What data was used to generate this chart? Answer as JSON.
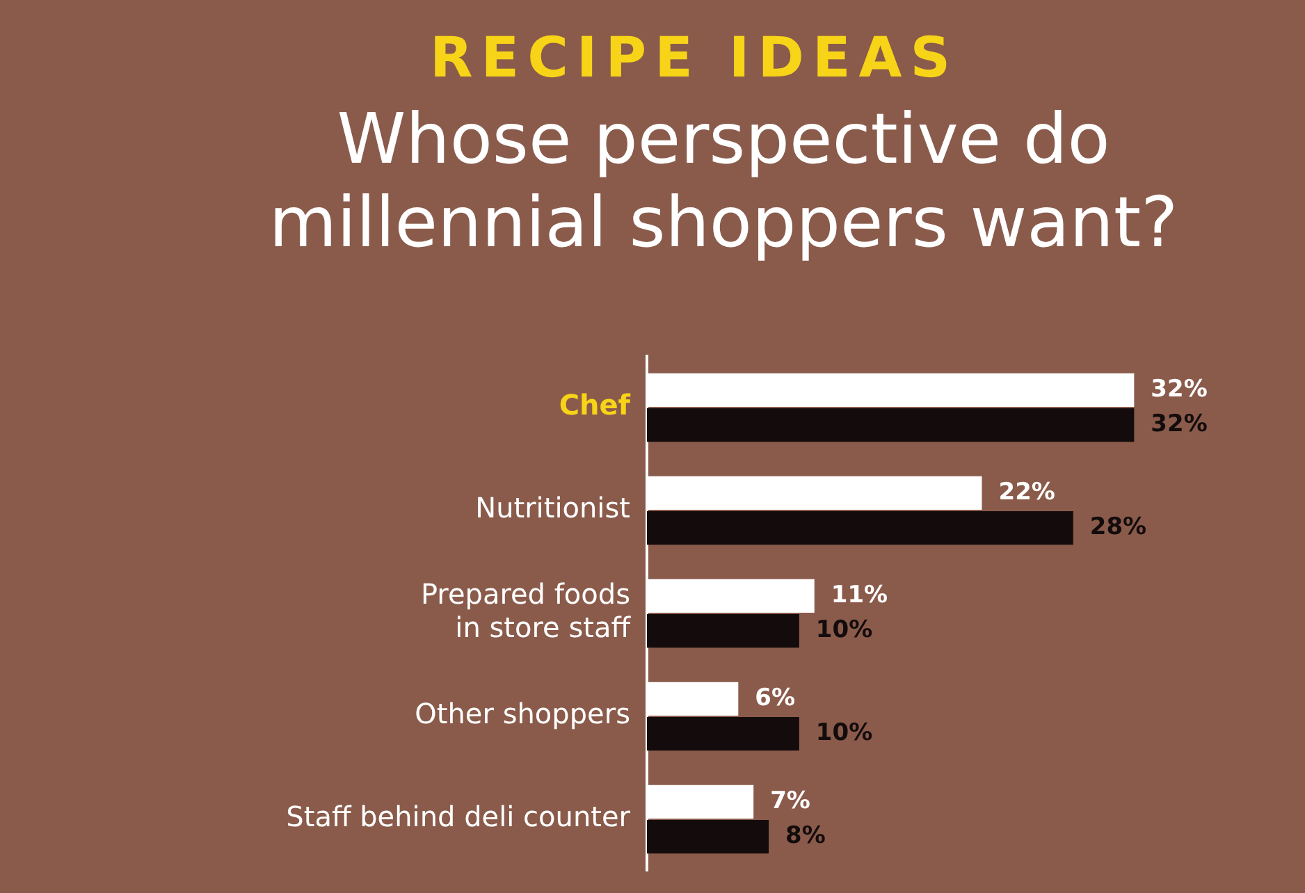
{
  "chart_data": {
    "type": "bar",
    "orientation": "horizontal",
    "title": "RECIPE IDEAS",
    "subtitle": "Whose perspective do millennial shoppers want?",
    "categories": [
      "Chef",
      "Nutritionist",
      "Prepared foods\nin store staff",
      "Other shoppers",
      "Staff behind deli counter"
    ],
    "series": [
      {
        "color": "#ffffff",
        "values": [
          32,
          22,
          11,
          6,
          7
        ],
        "value_labels": [
          "32%",
          "22%",
          "11%",
          "6%",
          "7%"
        ]
      },
      {
        "color": "#140c0c",
        "values": [
          32,
          28,
          10,
          10,
          8
        ],
        "value_labels": [
          "32%",
          "28%",
          "10%",
          "10%",
          "8%"
        ]
      }
    ],
    "legend": false
  }
}
